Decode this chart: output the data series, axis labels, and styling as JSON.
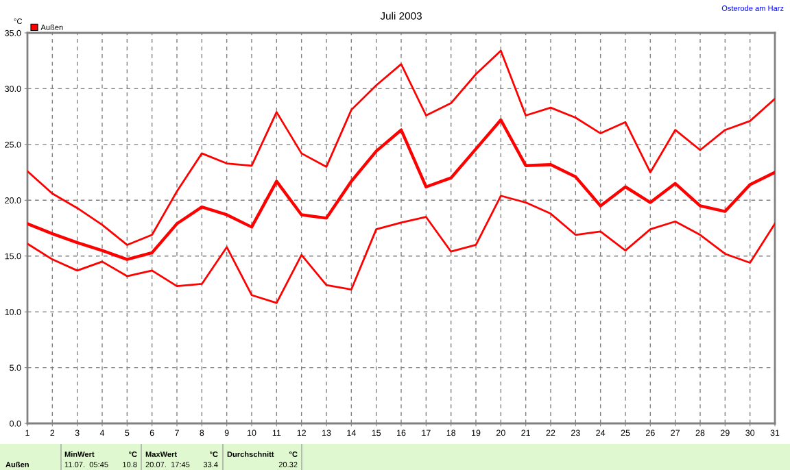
{
  "chart_data": {
    "type": "line",
    "title": "Juli 2003",
    "ylabel": "°C",
    "x": [
      1,
      2,
      3,
      4,
      5,
      6,
      7,
      8,
      9,
      10,
      11,
      12,
      13,
      14,
      15,
      16,
      17,
      18,
      19,
      20,
      21,
      22,
      23,
      24,
      25,
      26,
      27,
      28,
      29,
      30,
      31
    ],
    "series": [
      {
        "color": "#ff0000",
        "values": [
          22.6,
          20.6,
          19.3,
          17.8,
          16.0,
          16.9,
          20.8,
          24.2,
          23.3,
          23.1,
          27.9,
          24.2,
          23.0,
          28.1,
          30.3,
          32.2,
          27.6,
          28.7,
          31.3,
          33.4,
          27.6,
          28.3,
          27.4,
          26.0,
          27.0,
          22.5,
          26.3,
          24.5,
          26.3,
          27.1,
          29.1
        ]
      },
      {
        "name": "Außen",
        "color": "#ff0000",
        "values": [
          17.9,
          17.0,
          16.2,
          15.5,
          14.7,
          15.3,
          17.9,
          19.4,
          18.7,
          17.6,
          21.7,
          18.7,
          18.4,
          21.7,
          24.4,
          26.3,
          21.2,
          22.0,
          24.6,
          27.2,
          23.1,
          23.2,
          22.1,
          19.5,
          21.2,
          19.8,
          21.5,
          19.5,
          19.0,
          21.4,
          22.5
        ]
      },
      {
        "color": "#ff0000",
        "values": [
          16.1,
          14.7,
          13.7,
          14.5,
          13.2,
          13.7,
          12.3,
          12.5,
          15.8,
          11.5,
          10.8,
          15.1,
          12.4,
          12.0,
          17.4,
          18.0,
          18.5,
          15.4,
          16.0,
          20.4,
          19.8,
          18.8,
          16.9,
          17.2,
          15.5,
          17.4,
          18.1,
          16.9,
          15.2,
          14.4,
          17.9
        ]
      }
    ],
    "xlim": [
      1,
      31
    ],
    "xticks": [
      1,
      2,
      3,
      4,
      5,
      6,
      7,
      8,
      9,
      10,
      11,
      12,
      13,
      14,
      15,
      16,
      17,
      18,
      19,
      20,
      21,
      22,
      23,
      24,
      25,
      26,
      27,
      28,
      29,
      30,
      31
    ],
    "ylim": [
      0,
      35
    ],
    "yticks": [
      {
        "value": 0,
        "label": "0.0"
      },
      {
        "value": 5,
        "label": "5.0"
      },
      {
        "value": 10,
        "label": "10.0"
      },
      {
        "value": 15,
        "label": "15.0"
      },
      {
        "value": 20,
        "label": "20.0"
      },
      {
        "value": 25,
        "label": "25.0"
      },
      {
        "value": 30,
        "label": "30.0"
      },
      {
        "value": 35,
        "label": "35.0"
      }
    ],
    "grid": true,
    "legend": "top left",
    "marker": "none",
    "line_style": "solid",
    "annotations": [
      "Osterode am Harz",
      "Außen",
      "MinWert",
      "°C",
      "11.07.  05:45",
      "10.8",
      "MaxWert",
      "°C",
      "20.07.  17:45",
      "33.4",
      "Durchschnitt",
      "°C",
      "20.32"
    ]
  }
}
